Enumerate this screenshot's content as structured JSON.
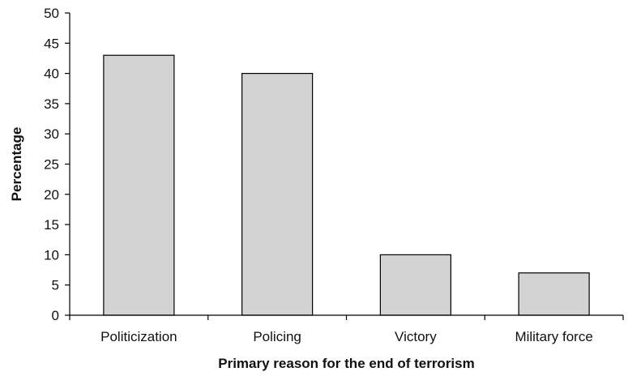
{
  "chart_data": {
    "type": "bar",
    "categories": [
      "Politicization",
      "Policing",
      "Victory",
      "Military force"
    ],
    "values": [
      43,
      40,
      10,
      7
    ],
    "title": "",
    "xlabel": "Primary reason for the end of terrorism",
    "ylabel": "Percentage",
    "ylim": [
      0,
      50
    ],
    "yticks": [
      0,
      5,
      10,
      15,
      20,
      25,
      30,
      35,
      40,
      45,
      50
    ],
    "grid": false,
    "legend": "none",
    "bar_color": "#d3d3d3",
    "bar_edge_color": "#000000"
  }
}
